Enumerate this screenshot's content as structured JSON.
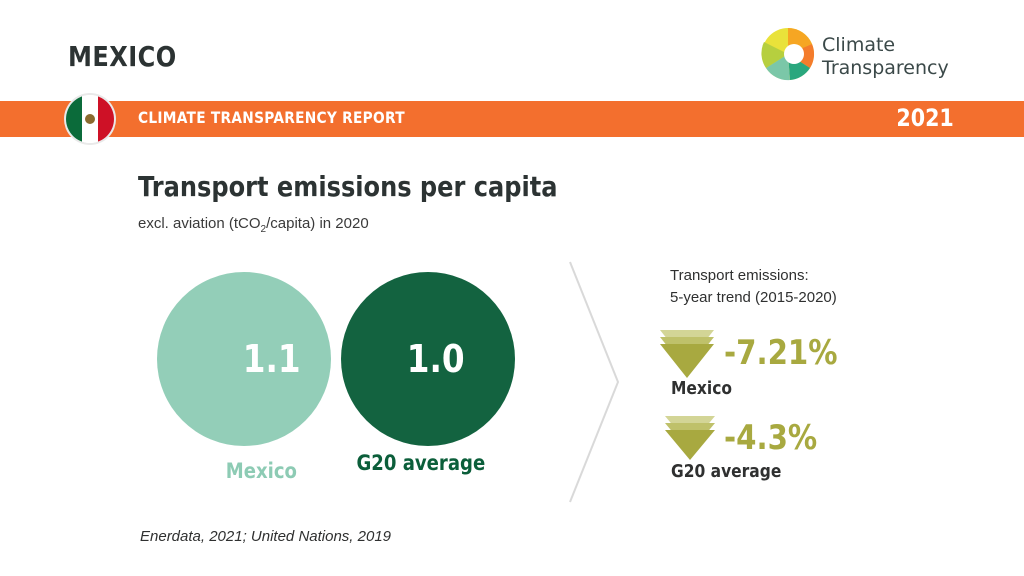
{
  "header": {
    "country": "MEXICO",
    "brand": {
      "line1": "Climate",
      "line2": "Transparency"
    }
  },
  "band": {
    "title": "CLIMATE TRANSPARENCY REPORT",
    "year": "2021"
  },
  "indicator": {
    "title": "Transport emissions per capita",
    "subtitle_prefix": "excl. aviation (tCO",
    "subtitle_sub": "2",
    "subtitle_suffix": "/capita) in 2020"
  },
  "comparison": {
    "mexico": {
      "value": "1.1",
      "label": "Mexico",
      "color": "#8dcbb4"
    },
    "g20": {
      "value": "1.0",
      "label": "G20 average",
      "color": "#0b5e3a"
    }
  },
  "trend": {
    "heading_line1": "Transport emissions:",
    "heading_line2": "5-year trend (2015-2020)",
    "items": [
      {
        "value": "-7.21%",
        "label": "Mexico"
      },
      {
        "value": "-4.3%",
        "label": "G20 average"
      }
    ],
    "color": "#a8a940"
  },
  "source": "Enerdata, 2021; United Nations, 2019"
}
